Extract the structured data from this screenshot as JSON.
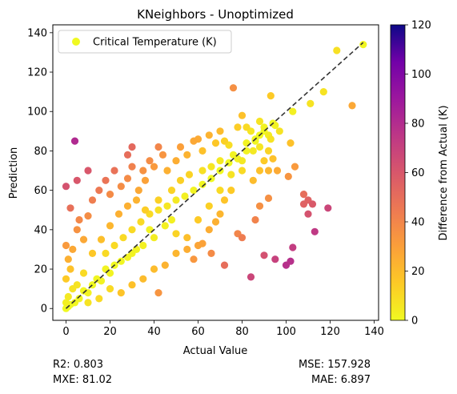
{
  "chart_data": {
    "type": "scatter",
    "title": "KNeighbors - Unoptimized",
    "xlabel": "Actual Value",
    "ylabel": "Prediction",
    "xlim": [
      -6,
      142
    ],
    "ylim": [
      -6,
      144
    ],
    "x_ticks": [
      0,
      20,
      40,
      60,
      80,
      100,
      120,
      140
    ],
    "y_ticks": [
      0,
      20,
      40,
      60,
      80,
      100,
      120,
      140
    ],
    "grid": false,
    "legend": {
      "label": "Critical Temperature (K)",
      "position": "top-left",
      "marker_color": "#f0f921"
    },
    "reference_line": {
      "style": "dashed",
      "color": "#333333",
      "from": [
        0,
        0
      ],
      "to": [
        135,
        135
      ]
    },
    "colorbar": {
      "label": "Difference from Actual (K)",
      "colormap": "plasma",
      "range": [
        0,
        120
      ],
      "ticks": [
        0,
        20,
        40,
        60,
        80,
        100,
        120
      ]
    },
    "points_note": "dense cloud along y=x; representative points listed",
    "points": [
      [
        4,
        85,
        81
      ],
      [
        0,
        62,
        62
      ],
      [
        5,
        65,
        60
      ],
      [
        10,
        70,
        60
      ],
      [
        2,
        51,
        49
      ],
      [
        30,
        82,
        52
      ],
      [
        28,
        78,
        50
      ],
      [
        38,
        75,
        37
      ],
      [
        42,
        82,
        40
      ],
      [
        76,
        112,
        36
      ],
      [
        93,
        108,
        15
      ],
      [
        103,
        100,
        3
      ],
      [
        111,
        104,
        7
      ],
      [
        117,
        110,
        7
      ],
      [
        123,
        131,
        8
      ],
      [
        135,
        134,
        1
      ],
      [
        130,
        103,
        27
      ],
      [
        102,
        84,
        18
      ],
      [
        101,
        67,
        34
      ],
      [
        104,
        72,
        32
      ],
      [
        108,
        58,
        50
      ],
      [
        110,
        55,
        55
      ],
      [
        112,
        53,
        59
      ],
      [
        108,
        53,
        55
      ],
      [
        110,
        48,
        62
      ],
      [
        119,
        51,
        68
      ],
      [
        113,
        39,
        74
      ],
      [
        103,
        31,
        72
      ],
      [
        100,
        22,
        78
      ],
      [
        102,
        24,
        78
      ],
      [
        95,
        25,
        70
      ],
      [
        90,
        27,
        63
      ],
      [
        84,
        16,
        68
      ],
      [
        72,
        22,
        50
      ],
      [
        66,
        28,
        38
      ],
      [
        62,
        33,
        29
      ],
      [
        78,
        38,
        40
      ],
      [
        80,
        36,
        44
      ],
      [
        86,
        45,
        41
      ],
      [
        88,
        52,
        36
      ],
      [
        92,
        56,
        36
      ],
      [
        92,
        88,
        4
      ],
      [
        97,
        90,
        7
      ],
      [
        93,
        86,
        7
      ],
      [
        88,
        95,
        7
      ],
      [
        85,
        80,
        5
      ],
      [
        90,
        75,
        15
      ],
      [
        88,
        70,
        18
      ],
      [
        92,
        70,
        22
      ],
      [
        80,
        70,
        10
      ],
      [
        75,
        60,
        15
      ],
      [
        72,
        55,
        17
      ],
      [
        70,
        48,
        22
      ],
      [
        68,
        44,
        24
      ],
      [
        65,
        40,
        25
      ],
      [
        60,
        32,
        28
      ],
      [
        58,
        25,
        33
      ],
      [
        55,
        36,
        19
      ],
      [
        50,
        38,
        12
      ],
      [
        48,
        45,
        3
      ],
      [
        45,
        42,
        3
      ],
      [
        42,
        8,
        34
      ],
      [
        40,
        36,
        4
      ],
      [
        38,
        40,
        2
      ],
      [
        35,
        32,
        3
      ],
      [
        32,
        30,
        2
      ],
      [
        30,
        28,
        2
      ],
      [
        28,
        26,
        2
      ],
      [
        25,
        24,
        1
      ],
      [
        22,
        22,
        0
      ],
      [
        20,
        18,
        2
      ],
      [
        18,
        20,
        2
      ],
      [
        16,
        14,
        2
      ],
      [
        14,
        15,
        1
      ],
      [
        12,
        12,
        0
      ],
      [
        10,
        8,
        2
      ],
      [
        8,
        9,
        1
      ],
      [
        6,
        5,
        1
      ],
      [
        4,
        3,
        1
      ],
      [
        2,
        2,
        0
      ],
      [
        1,
        1,
        0
      ],
      [
        0,
        0,
        0
      ],
      [
        0,
        3,
        3
      ],
      [
        1,
        6,
        5
      ],
      [
        3,
        10,
        7
      ],
      [
        0,
        15,
        15
      ],
      [
        2,
        20,
        18
      ],
      [
        1,
        25,
        24
      ],
      [
        0,
        32,
        32
      ],
      [
        3,
        30,
        27
      ],
      [
        5,
        40,
        35
      ],
      [
        8,
        35,
        27
      ],
      [
        6,
        45,
        39
      ],
      [
        10,
        47,
        37
      ],
      [
        12,
        55,
        43
      ],
      [
        15,
        60,
        45
      ],
      [
        18,
        65,
        47
      ],
      [
        20,
        58,
        38
      ],
      [
        22,
        70,
        48
      ],
      [
        25,
        62,
        37
      ],
      [
        28,
        66,
        38
      ],
      [
        30,
        72,
        42
      ],
      [
        33,
        60,
        27
      ],
      [
        35,
        70,
        35
      ],
      [
        36,
        65,
        29
      ],
      [
        40,
        72,
        32
      ],
      [
        44,
        78,
        34
      ],
      [
        46,
        70,
        24
      ],
      [
        50,
        75,
        25
      ],
      [
        52,
        82,
        30
      ],
      [
        55,
        78,
        23
      ],
      [
        58,
        85,
        27
      ],
      [
        60,
        86,
        26
      ],
      [
        62,
        80,
        18
      ],
      [
        65,
        88,
        23
      ],
      [
        68,
        84,
        16
      ],
      [
        70,
        90,
        20
      ],
      [
        72,
        85,
        13
      ],
      [
        74,
        83,
        9
      ],
      [
        78,
        92,
        14
      ],
      [
        80,
        98,
        18
      ],
      [
        82,
        92,
        10
      ],
      [
        84,
        90,
        6
      ],
      [
        86,
        85,
        1
      ],
      [
        88,
        88,
        0
      ],
      [
        90,
        90,
        0
      ],
      [
        95,
        93,
        2
      ],
      [
        20,
        10,
        10
      ],
      [
        25,
        8,
        17
      ],
      [
        30,
        12,
        18
      ],
      [
        35,
        15,
        20
      ],
      [
        40,
        20,
        20
      ],
      [
        45,
        22,
        23
      ],
      [
        50,
        28,
        22
      ],
      [
        55,
        30,
        25
      ],
      [
        60,
        45,
        15
      ],
      [
        65,
        52,
        13
      ],
      [
        70,
        60,
        10
      ],
      [
        75,
        68,
        7
      ],
      [
        80,
        75,
        5
      ],
      [
        85,
        65,
        20
      ],
      [
        15,
        5,
        10
      ],
      [
        10,
        3,
        7
      ],
      [
        5,
        12,
        7
      ],
      [
        8,
        18,
        10
      ],
      [
        12,
        28,
        16
      ],
      [
        16,
        35,
        19
      ],
      [
        20,
        42,
        22
      ],
      [
        24,
        48,
        24
      ],
      [
        28,
        52,
        24
      ],
      [
        32,
        55,
        23
      ],
      [
        36,
        50,
        14
      ],
      [
        42,
        55,
        13
      ],
      [
        48,
        60,
        12
      ],
      [
        52,
        65,
        13
      ],
      [
        56,
        68,
        12
      ],
      [
        62,
        70,
        8
      ],
      [
        66,
        72,
        6
      ],
      [
        70,
        75,
        5
      ],
      [
        76,
        78,
        2
      ],
      [
        82,
        80,
        2
      ],
      [
        88,
        82,
        6
      ],
      [
        92,
        80,
        12
      ],
      [
        94,
        76,
        18
      ],
      [
        96,
        70,
        26
      ],
      [
        18,
        28,
        10
      ],
      [
        22,
        32,
        10
      ],
      [
        26,
        36,
        10
      ],
      [
        30,
        40,
        10
      ],
      [
        34,
        44,
        10
      ],
      [
        38,
        48,
        10
      ],
      [
        42,
        50,
        8
      ],
      [
        46,
        52,
        6
      ],
      [
        50,
        55,
        5
      ],
      [
        54,
        57,
        3
      ],
      [
        58,
        60,
        2
      ],
      [
        62,
        63,
        1
      ],
      [
        66,
        66,
        0
      ],
      [
        70,
        70,
        0
      ],
      [
        74,
        74,
        0
      ],
      [
        78,
        76,
        2
      ],
      [
        82,
        84,
        2
      ],
      [
        86,
        86,
        0
      ],
      [
        90,
        92,
        2
      ],
      [
        94,
        94,
        0
      ]
    ]
  },
  "metrics": {
    "r2": "R2: 0.803",
    "mxe": "MXE: 81.02",
    "mse": "MSE: 157.928",
    "mae": "MAE: 6.897"
  }
}
